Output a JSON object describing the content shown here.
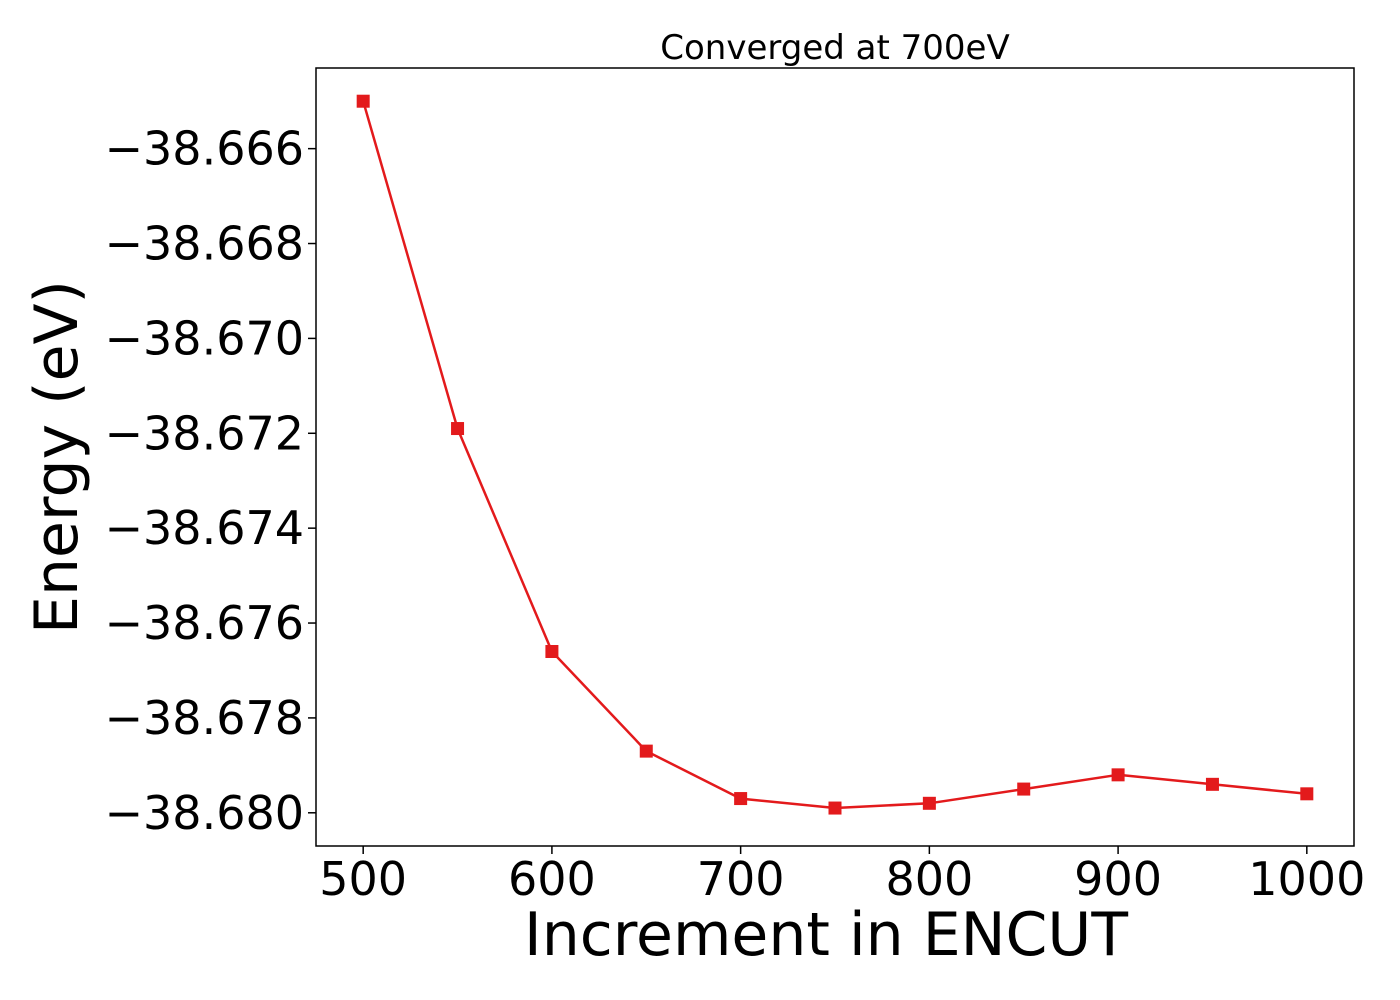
{
  "chart_data": {
    "type": "line",
    "title": "Converged at 700eV",
    "xlabel": "Increment in ENCUT",
    "ylabel": "Energy (eV)",
    "x": [
      500,
      550,
      600,
      650,
      700,
      750,
      800,
      850,
      900,
      950,
      1000
    ],
    "series": [
      {
        "values": [
          -38.665,
          -38.6719,
          -38.6766,
          -38.6787,
          -38.6797,
          -38.6799,
          -38.6798,
          -38.6795,
          -38.6792,
          -38.6794,
          -38.6796
        ]
      }
    ],
    "xlim": [
      475,
      1025
    ],
    "ylim": [
      -38.6807,
      -38.6643
    ],
    "xticks": [
      500,
      600,
      700,
      800,
      900,
      1000
    ],
    "xtick_labels": [
      "500",
      "600",
      "700",
      "800",
      "900",
      "1000"
    ],
    "yticks": [
      -38.666,
      -38.668,
      -38.67,
      -38.672,
      -38.674,
      -38.676,
      -38.678,
      -38.68
    ],
    "ytick_labels": [
      "−38.666",
      "−38.668",
      "−38.670",
      "−38.672",
      "−38.674",
      "−38.676",
      "−38.678",
      "−38.680"
    ],
    "grid": false,
    "marker": "square",
    "colors": {
      "series": "#e31a1c"
    }
  }
}
